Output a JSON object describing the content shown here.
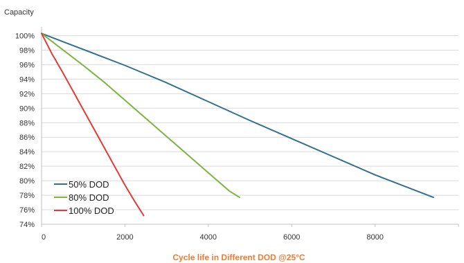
{
  "chart_data": {
    "type": "line",
    "title": "Cycle life in Different DOD @25°C",
    "title_color": "#ED7D31",
    "ylabel": "Capacity",
    "xlabel": "",
    "xlim": [
      0,
      10000
    ],
    "ylim": [
      74,
      101
    ],
    "x_ticks": [
      0,
      2000,
      4000,
      6000,
      8000
    ],
    "x_tick_labels": [
      "0",
      "2000",
      "4000",
      "6000",
      "8000"
    ],
    "y_ticks": [
      74,
      76,
      78,
      80,
      82,
      84,
      86,
      88,
      90,
      92,
      94,
      96,
      98,
      100
    ],
    "y_tick_labels": [
      "74%",
      "76%",
      "78%",
      "80%",
      "82%",
      "84%",
      "86%",
      "88%",
      "90%",
      "92%",
      "94%",
      "96%",
      "98%",
      "100%"
    ],
    "grid": "horizontal",
    "legend_position": "bottom-left",
    "series": [
      {
        "name": "50% DOD",
        "color": "#31708F",
        "x": [
          0,
          500,
          1000,
          1500,
          2000,
          2500,
          3000,
          4000,
          5000,
          6000,
          7000,
          8000,
          9400
        ],
        "y": [
          100.3,
          99.2,
          98.1,
          97.0,
          95.9,
          94.7,
          93.5,
          90.9,
          88.3,
          85.8,
          83.3,
          80.8,
          77.7
        ]
      },
      {
        "name": "80% DOD",
        "color": "#7CB342",
        "x": [
          0,
          500,
          1000,
          1500,
          2000,
          2500,
          3000,
          3500,
          4000,
          4500,
          4750
        ],
        "y": [
          100.3,
          98.1,
          95.9,
          93.6,
          91.1,
          88.6,
          86.1,
          83.6,
          81.1,
          78.6,
          77.7
        ]
      },
      {
        "name": "100% DOD",
        "color": "#E53935",
        "x": [
          0,
          250,
          500,
          750,
          1000,
          1250,
          1500,
          1750,
          2000,
          2250,
          2450
        ],
        "y": [
          100.3,
          97.5,
          95.0,
          92.4,
          89.8,
          87.2,
          84.6,
          82.0,
          79.4,
          77.0,
          75.2
        ]
      }
    ]
  }
}
